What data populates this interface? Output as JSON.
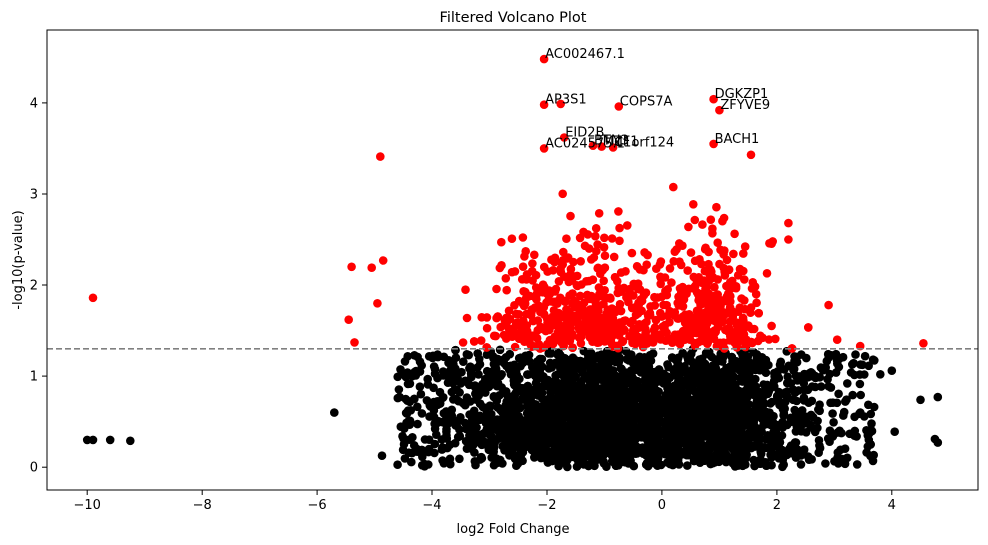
{
  "chart_data": {
    "type": "scatter",
    "title": "Filtered Volcano Plot",
    "xlabel": "log2 Fold Change",
    "ylabel": "-log10(p-value)",
    "xlim": [
      -10.7,
      5.5
    ],
    "ylim": [
      -0.25,
      4.8
    ],
    "x_ticks": [
      -10,
      -8,
      -6,
      -4,
      -2,
      0,
      2,
      4
    ],
    "y_ticks": [
      0,
      1,
      2,
      3,
      4
    ],
    "grid": false,
    "threshold": {
      "y": 1.3,
      "style": "dashed",
      "color": "#808080"
    },
    "colors": {
      "significant": "#ff0000",
      "not_significant": "#000000"
    },
    "labeled_points": [
      {
        "label": "AC002467.1",
        "x": -2.05,
        "y": 4.48
      },
      {
        "label": "AP3S1",
        "x": -2.05,
        "y": 3.98
      },
      {
        "label": "COPS7A",
        "x": -0.75,
        "y": 3.96
      },
      {
        "label": "DGKZP1",
        "x": 0.9,
        "y": 4.04
      },
      {
        "label": "ZFYVE9",
        "x": 1.0,
        "y": 3.92
      },
      {
        "label": "EID2B",
        "x": -1.7,
        "y": 3.62
      },
      {
        "label": "BACH1",
        "x": 0.9,
        "y": 3.55
      },
      {
        "label": "AC024575.1",
        "x": -2.05,
        "y": 3.5
      },
      {
        "label": "BTN3",
        "x": -1.2,
        "y": 3.53
      },
      {
        "label": "MZF1",
        "x": -1.05,
        "y": 3.52
      },
      {
        "label": "C1orf124",
        "x": -0.85,
        "y": 3.51
      }
    ],
    "outlier_points": [
      {
        "x": -9.9,
        "y": 1.86,
        "significant": true
      },
      {
        "x": -4.9,
        "y": 3.41,
        "significant": true
      },
      {
        "x": -5.4,
        "y": 2.2,
        "significant": true
      },
      {
        "x": -5.05,
        "y": 2.19,
        "significant": true
      },
      {
        "x": -4.85,
        "y": 2.27,
        "significant": true
      },
      {
        "x": -4.95,
        "y": 1.8,
        "significant": true
      },
      {
        "x": -5.45,
        "y": 1.62,
        "significant": true
      },
      {
        "x": -5.35,
        "y": 1.37,
        "significant": true
      },
      {
        "x": 2.2,
        "y": 2.68,
        "significant": true
      },
      {
        "x": 2.2,
        "y": 2.5,
        "significant": true
      },
      {
        "x": 2.9,
        "y": 1.78,
        "significant": true
      },
      {
        "x": 3.05,
        "y": 1.4,
        "significant": true
      },
      {
        "x": 3.45,
        "y": 1.33,
        "significant": true
      },
      {
        "x": 4.55,
        "y": 1.36,
        "significant": true
      },
      {
        "x": 1.55,
        "y": 3.43,
        "significant": true
      },
      {
        "x": -10.0,
        "y": 0.3,
        "significant": false
      },
      {
        "x": -9.9,
        "y": 0.3,
        "significant": false
      },
      {
        "x": -9.6,
        "y": 0.3,
        "significant": false
      },
      {
        "x": -9.25,
        "y": 0.29,
        "significant": false
      },
      {
        "x": -5.7,
        "y": 0.6,
        "significant": false
      },
      {
        "x": 4.8,
        "y": 0.77,
        "significant": false
      },
      {
        "x": 4.5,
        "y": 0.74,
        "significant": false
      },
      {
        "x": 4.75,
        "y": 0.31,
        "significant": false
      },
      {
        "x": 4.8,
        "y": 0.27,
        "significant": false
      },
      {
        "x": 4.0,
        "y": 1.06,
        "significant": false
      },
      {
        "x": 3.8,
        "y": 1.02,
        "significant": false
      },
      {
        "x": 4.05,
        "y": 0.39,
        "significant": false
      },
      {
        "x": 3.6,
        "y": 0.3,
        "significant": false
      }
    ],
    "bulk_cloud": {
      "description_left": "dense cluster centered near x=-1.3",
      "description_right": "dense cluster centered near x=0.9",
      "x_range": [
        -4.8,
        3.8
      ],
      "y_range": [
        0,
        3.6
      ]
    }
  }
}
